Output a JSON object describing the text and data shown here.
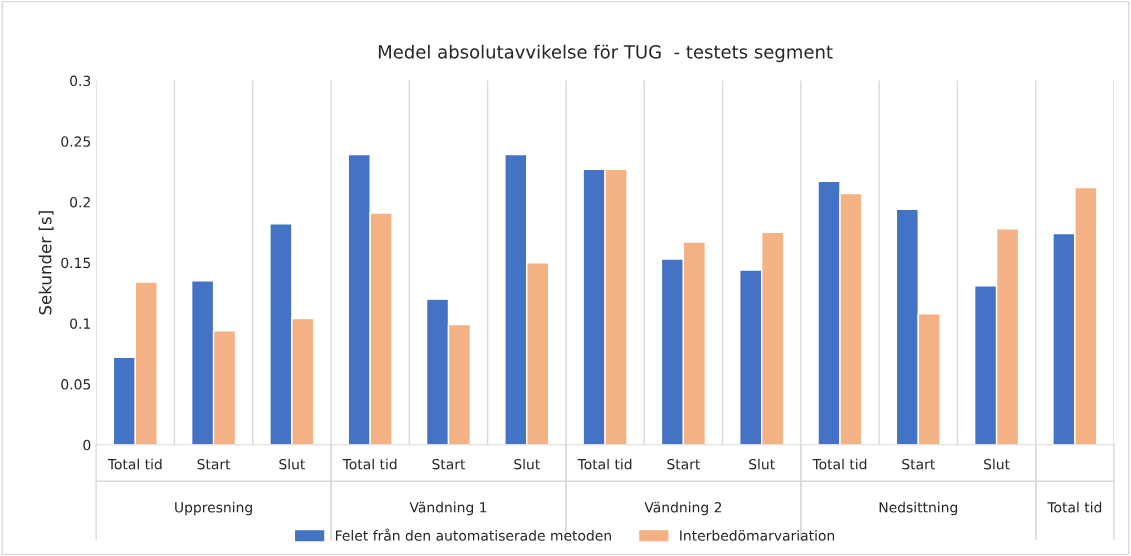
{
  "chart_data": {
    "type": "bar",
    "title": "Medel absolutavvikelse för TUG  - testets segment",
    "ylabel": "Sekunder [s]",
    "categories": [
      "Total tid",
      "Start",
      "Slut",
      "Total tid",
      "Start",
      "Slut",
      "Total tid",
      "Start",
      "Slut",
      "Total tid",
      "Start",
      "Slut",
      null
    ],
    "annotations": [
      "Uppresning",
      "Vändning 1",
      "Vändning 2",
      "Nedsittning",
      "Total tid"
    ],
    "series": [
      {
        "name": "Felet från den automatiserade metoden",
        "color": "#4472c4",
        "values": [
          0.072,
          0.135,
          0.182,
          0.239,
          0.12,
          0.239,
          0.227,
          0.153,
          0.144,
          0.217,
          0.194,
          0.131,
          0.174
        ]
      },
      {
        "name": "Interbedömarvariation",
        "color": "#f4b183",
        "values": [
          0.134,
          0.094,
          0.104,
          0.191,
          0.099,
          0.15,
          0.227,
          0.167,
          0.175,
          0.207,
          0.108,
          0.178,
          0.212
        ]
      }
    ],
    "ylim": [
      0,
      0.3
    ],
    "yticks": [
      {
        "value": 0,
        "label": "0"
      },
      0.05,
      0.1,
      0.15,
      0.2,
      0.25,
      0.3
    ],
    "grid": "x",
    "legend": "bottom"
  }
}
